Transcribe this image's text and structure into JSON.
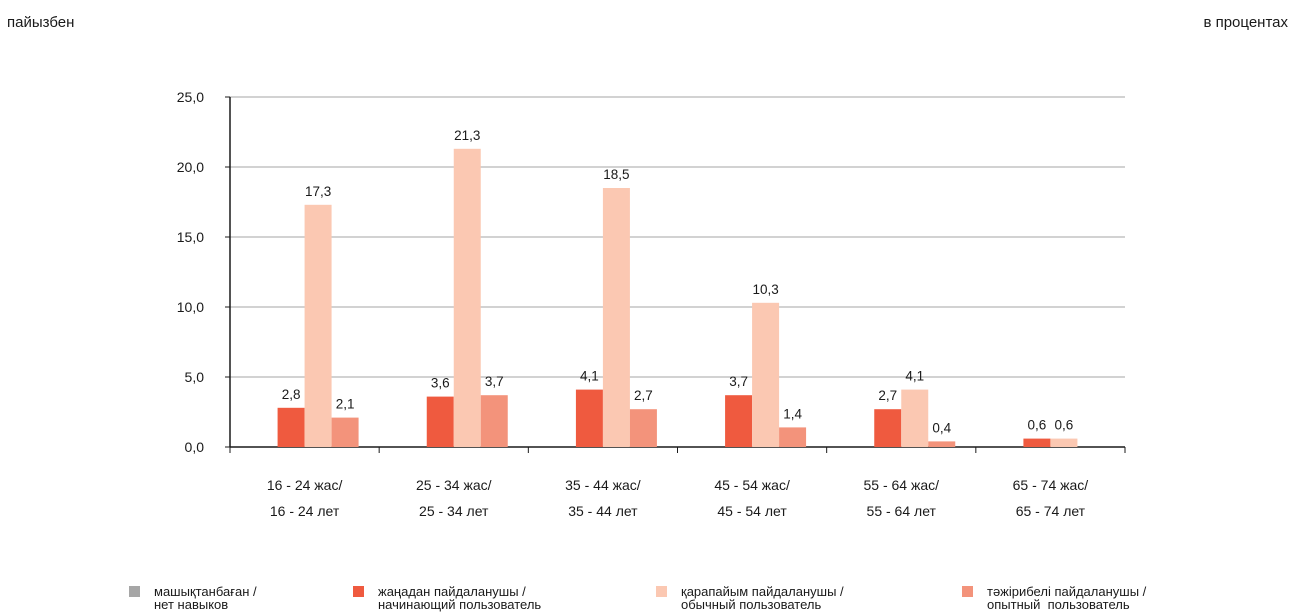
{
  "header": {
    "left_unit": "пайызбен",
    "right_unit": "в процентах"
  },
  "colors": {
    "s1": "#a6a6a6",
    "s2": "#ef5a3f",
    "s3": "#fbc8b2",
    "s4": "#f3937b",
    "grid": "#a6a6a6",
    "axis": "#1a1a1a"
  },
  "chart_data": {
    "type": "bar",
    "categories": [
      [
        "16 - 24 жас/",
        "16 - 24 лет"
      ],
      [
        "25 - 34 жас/",
        "25 - 34 лет"
      ],
      [
        "35 - 44 жас/",
        "35 - 44 лет"
      ],
      [
        "45 - 54 жас/",
        "45 - 54 лет"
      ],
      [
        "55 - 64 жас/",
        "55 - 64 лет"
      ],
      [
        "65 - 74 жас/",
        "65 - 74 лет"
      ]
    ],
    "series": [
      {
        "name": "машықтанбаған / нет навыков",
        "values": [
          null,
          null,
          null,
          null,
          null,
          null
        ]
      },
      {
        "name": "жаңадан пайдаланушы / начинающий пользователь",
        "values": [
          2.8,
          3.6,
          4.1,
          3.7,
          2.7,
          0.6
        ]
      },
      {
        "name": "қарапайым пайдаланушы / обычный пользователь",
        "values": [
          17.3,
          21.3,
          18.5,
          10.3,
          4.1,
          0.6
        ]
      },
      {
        "name": "тәжірибелі пайдаланушы / опытный пользователь",
        "values": [
          2.1,
          3.7,
          2.7,
          1.4,
          0.4,
          null
        ]
      }
    ],
    "yticks": [
      "0,0",
      "5,0",
      "10,0",
      "15,0",
      "20,0",
      "25,0"
    ],
    "ylim": [
      0,
      25
    ],
    "grid": true,
    "legend_position": "bottom"
  },
  "legend": [
    {
      "line1": "машықтанбаған /",
      "line2": "нет навыков"
    },
    {
      "line1": "жаңадан пайдаланушы /",
      "line2": "начинающий пользователь"
    },
    {
      "line1": "қарапайым пайдаланушы /",
      "line2": "обычный пользователь"
    },
    {
      "line1": "тәжірибелі пайдаланушы /",
      "line2": "опытный  пользователь"
    }
  ]
}
